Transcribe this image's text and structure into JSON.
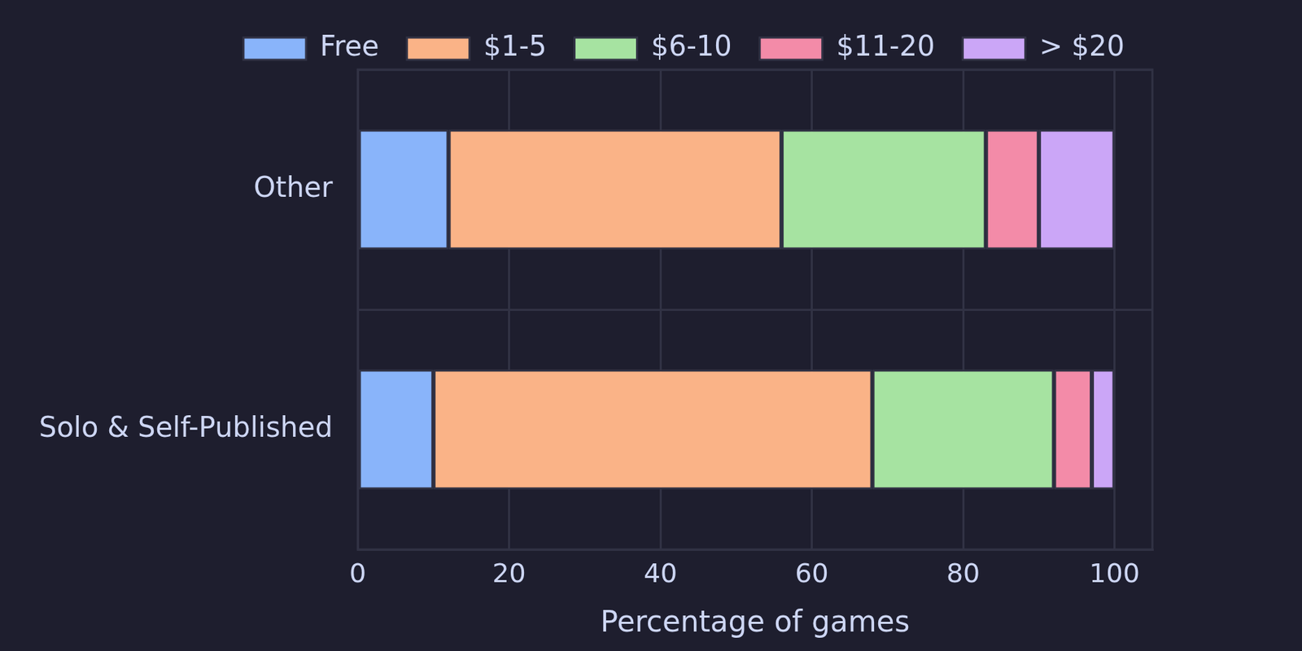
{
  "chart_data": {
    "type": "bar",
    "orientation": "horizontal",
    "stacked": true,
    "categories": [
      "Other",
      "Solo & Self-Published"
    ],
    "series": [
      {
        "name": "Free",
        "color": "#89b4fa",
        "values": [
          12,
          10
        ]
      },
      {
        "name": "$1-5",
        "color": "#fab387",
        "values": [
          44,
          58
        ]
      },
      {
        "name": "$6-10",
        "color": "#a6e3a1",
        "values": [
          27,
          24
        ]
      },
      {
        "name": "$11-20",
        "color": "#f38ba8",
        "values": [
          7,
          5
        ]
      },
      {
        "name": "> $20",
        "color": "#cba6f7",
        "values": [
          10,
          3
        ]
      }
    ],
    "x_label": "Percentage of games",
    "xlim": [
      0,
      105
    ],
    "xticks": [
      0,
      20,
      40,
      60,
      80,
      100
    ],
    "grid": true,
    "legend": "top"
  }
}
